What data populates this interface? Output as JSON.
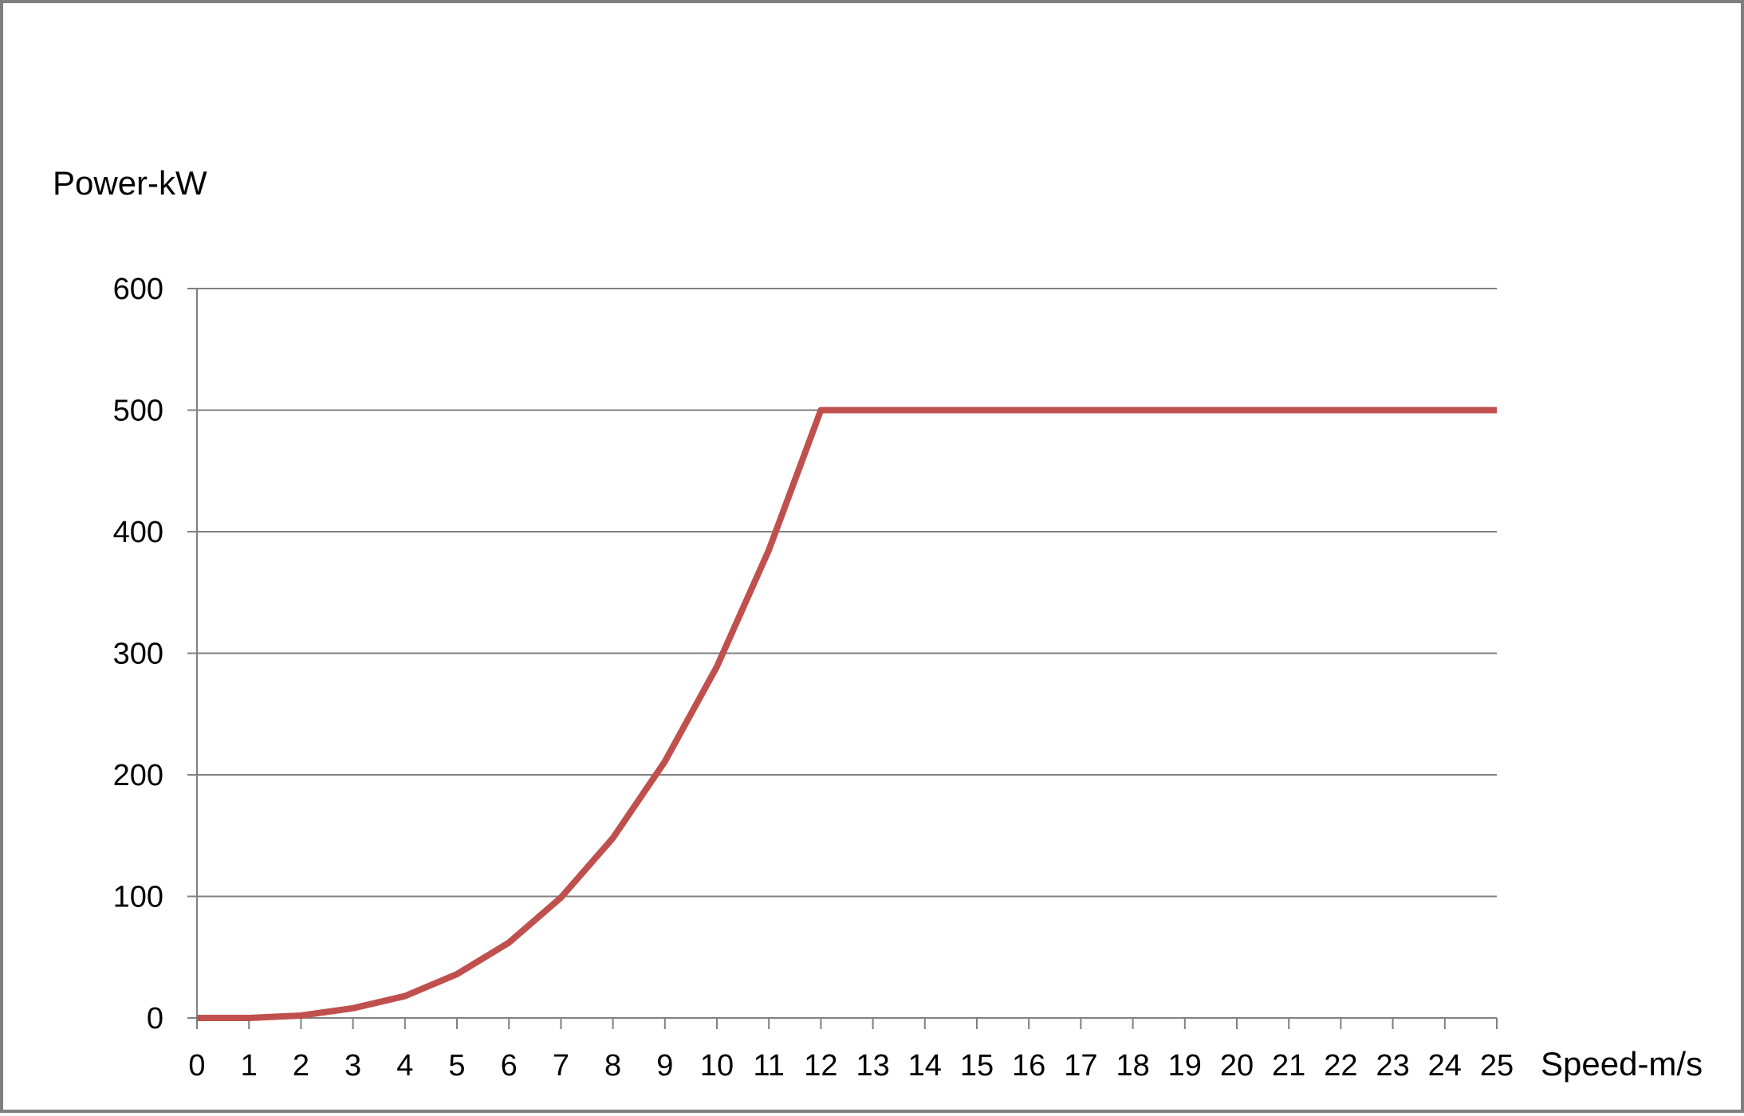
{
  "chart_data": {
    "type": "line",
    "ylabel": "Power-kW",
    "xlabel": "Speed-m/s",
    "x": [
      0,
      1,
      2,
      3,
      4,
      5,
      6,
      7,
      8,
      9,
      10,
      11,
      12,
      13,
      14,
      15,
      16,
      17,
      18,
      19,
      20,
      21,
      22,
      23,
      24,
      25
    ],
    "xticks": [
      "0",
      "1",
      "2",
      "3",
      "4",
      "5",
      "6",
      "7",
      "8",
      "9",
      "10",
      "11",
      "12",
      "13",
      "14",
      "15",
      "16",
      "17",
      "18",
      "19",
      "20",
      "21",
      "22",
      "23",
      "24",
      "25"
    ],
    "yticks": [
      "0",
      "100",
      "200",
      "300",
      "400",
      "500",
      "600"
    ],
    "ylim": [
      0,
      600
    ],
    "xlim": [
      0,
      25
    ],
    "grid": "horizontal",
    "series": [
      {
        "color": "#c0504d",
        "values": [
          0,
          0,
          2,
          8,
          18,
          36,
          62,
          99,
          148,
          211,
          289,
          385,
          500,
          500,
          500,
          500,
          500,
          500,
          500,
          500,
          500,
          500,
          500,
          500,
          500,
          500
        ]
      }
    ],
    "colors": {
      "grid": "#808080",
      "axis": "#808080",
      "frame": "#7f7f7f"
    }
  }
}
